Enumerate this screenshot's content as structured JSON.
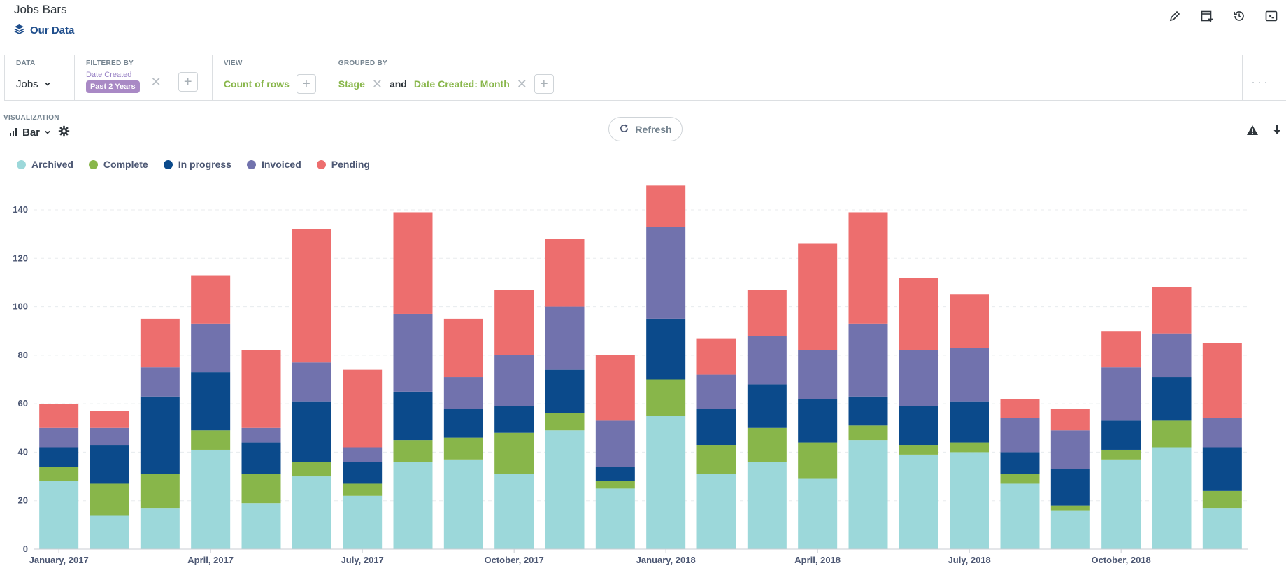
{
  "header": {
    "title": "Jobs Bars",
    "source_label": "Our Data"
  },
  "query": {
    "data": {
      "label": "DATA",
      "table": "Jobs"
    },
    "filter": {
      "label": "FILTERED BY",
      "field": "Date Created",
      "value": "Past 2 Years"
    },
    "view": {
      "label": "VIEW",
      "metric": "Count of rows"
    },
    "group": {
      "label": "GROUPED BY",
      "first": "Stage",
      "joiner": "and",
      "second": "Date Created: Month"
    }
  },
  "visualization": {
    "label": "VISUALIZATION",
    "type_label": "Bar",
    "refresh_label": "Refresh"
  },
  "colors": {
    "Archived": "#9cd8da",
    "Complete": "#88b64a",
    "In progress": "#0b4a8b",
    "Invoiced": "#7172ad",
    "Pending": "#ed6e6e"
  },
  "chart_data": {
    "type": "bar",
    "stacked": true,
    "legend_position": "top-left",
    "ylim": [
      0,
      150
    ],
    "yticks": [
      0,
      20,
      40,
      60,
      80,
      100,
      120,
      140
    ],
    "grid": true,
    "x_tick_labels": [
      {
        "index": 0,
        "label": "January, 2017"
      },
      {
        "index": 3,
        "label": "April, 2017"
      },
      {
        "index": 6,
        "label": "July, 2017"
      },
      {
        "index": 9,
        "label": "October, 2017"
      },
      {
        "index": 12,
        "label": "January, 2018"
      },
      {
        "index": 15,
        "label": "April, 2018"
      },
      {
        "index": 18,
        "label": "July, 2018"
      },
      {
        "index": 21,
        "label": "October, 2018"
      }
    ],
    "categories": [
      "2017-01",
      "2017-02",
      "2017-03",
      "2017-04",
      "2017-05",
      "2017-06",
      "2017-07",
      "2017-08",
      "2017-09",
      "2017-10",
      "2017-11",
      "2017-12",
      "2018-01",
      "2018-02",
      "2018-03",
      "2018-04",
      "2018-05",
      "2018-06",
      "2018-07",
      "2018-08",
      "2018-09",
      "2018-10",
      "2018-11",
      "2018-12"
    ],
    "series": [
      {
        "name": "Archived",
        "values": [
          28,
          14,
          17,
          41,
          19,
          30,
          22,
          36,
          37,
          31,
          49,
          25,
          55,
          31,
          36,
          29,
          45,
          39,
          40,
          27,
          16,
          37,
          42,
          17
        ]
      },
      {
        "name": "Complete",
        "values": [
          6,
          13,
          14,
          8,
          12,
          6,
          5,
          9,
          9,
          17,
          7,
          3,
          15,
          12,
          14,
          15,
          6,
          4,
          4,
          4,
          2,
          4,
          11,
          7
        ]
      },
      {
        "name": "In progress",
        "values": [
          8,
          16,
          32,
          24,
          13,
          25,
          9,
          20,
          12,
          11,
          18,
          6,
          25,
          15,
          18,
          18,
          12,
          16,
          17,
          9,
          15,
          12,
          18,
          18
        ]
      },
      {
        "name": "Invoiced",
        "values": [
          8,
          7,
          12,
          20,
          6,
          16,
          6,
          32,
          13,
          21,
          26,
          19,
          38,
          14,
          20,
          20,
          30,
          23,
          22,
          14,
          16,
          22,
          18,
          12
        ]
      },
      {
        "name": "Pending",
        "values": [
          10,
          7,
          20,
          20,
          32,
          55,
          32,
          42,
          24,
          27,
          28,
          27,
          17,
          15,
          19,
          44,
          46,
          30,
          22,
          8,
          9,
          15,
          19,
          31
        ]
      }
    ]
  }
}
